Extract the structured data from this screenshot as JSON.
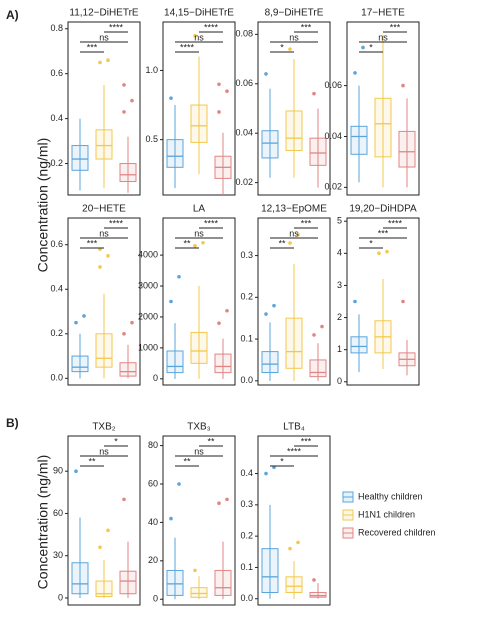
{
  "panel_labels": [
    "A)",
    "B)"
  ],
  "y_labels": [
    "Concentration (ng/ml)",
    "Concentration (ng/ml)"
  ],
  "legend": [
    {
      "name": "Healthy children",
      "color": "#5aa5dc"
    },
    {
      "name": "H1N1 children",
      "color": "#f2c94c"
    },
    {
      "name": "Recovered children",
      "color": "#e08585"
    }
  ],
  "chart_data": [
    {
      "type": "box",
      "title": "11,12−DiHETrE",
      "ylim": [
        0.06,
        0.83
      ],
      "yticks": [
        0.2,
        0.4,
        0.6,
        0.8
      ],
      "boxes": [
        {
          "whisker_low": 0.08,
          "q1": 0.17,
          "median": 0.22,
          "q3": 0.28,
          "whisker_high": 0.4,
          "outliers": []
        },
        {
          "whisker_low": 0.09,
          "q1": 0.22,
          "median": 0.28,
          "q3": 0.35,
          "whisker_high": 0.55,
          "outliers": [
            0.65,
            0.66
          ]
        },
        {
          "whisker_low": 0.07,
          "q1": 0.12,
          "median": 0.15,
          "q3": 0.2,
          "whisker_high": 0.32,
          "outliers": [
            0.43,
            0.48,
            0.55
          ]
        }
      ],
      "significance": [
        "***",
        "ns",
        "****"
      ]
    },
    {
      "type": "box",
      "title": "14,15−DiHETrE",
      "ylim": [
        0.1,
        1.35
      ],
      "yticks": [
        0.5,
        {
          "value": 1,
          "label": "1.0"
        }
      ],
      "boxes": [
        {
          "whisker_low": 0.15,
          "q1": 0.3,
          "median": 0.38,
          "q3": 0.5,
          "whisker_high": 0.75,
          "outliers": [
            0.8
          ]
        },
        {
          "whisker_low": 0.25,
          "q1": 0.48,
          "median": 0.6,
          "q3": 0.75,
          "whisker_high": 1.1,
          "outliers": [
            1.25
          ]
        },
        {
          "whisker_low": 0.1,
          "q1": 0.22,
          "median": 0.3,
          "q3": 0.38,
          "whisker_high": 0.55,
          "outliers": [
            0.7,
            0.85,
            0.9
          ]
        }
      ],
      "significance": [
        "****",
        "ns",
        "****"
      ]
    },
    {
      "type": "box",
      "title": "8,9−DiHETrE",
      "ylim": [
        0.015,
        0.085
      ],
      "yticks": [
        0.02,
        0.04,
        0.06,
        0.08
      ],
      "boxes": [
        {
          "whisker_low": 0.022,
          "q1": 0.03,
          "median": 0.036,
          "q3": 0.041,
          "whisker_high": 0.058,
          "outliers": [
            0.064
          ]
        },
        {
          "whisker_low": 0.022,
          "q1": 0.033,
          "median": 0.038,
          "q3": 0.049,
          "whisker_high": 0.07,
          "outliers": [
            0.074
          ]
        },
        {
          "whisker_low": 0.018,
          "q1": 0.027,
          "median": 0.032,
          "q3": 0.038,
          "whisker_high": 0.05,
          "outliers": [
            0.056
          ]
        }
      ],
      "significance": [
        "*",
        "ns",
        "***"
      ]
    },
    {
      "type": "box",
      "title": "17−HETE",
      "ylim": [
        0.017,
        0.085
      ],
      "yticks": [
        0.02,
        0.04,
        0.06
      ],
      "boxes": [
        {
          "whisker_low": 0.022,
          "q1": 0.033,
          "median": 0.04,
          "q3": 0.044,
          "whisker_high": 0.06,
          "outliers": [
            0.065,
            0.075
          ]
        },
        {
          "whisker_low": 0.02,
          "q1": 0.032,
          "median": 0.045,
          "q3": 0.055,
          "whisker_high": 0.08,
          "outliers": []
        },
        {
          "whisker_low": 0.02,
          "q1": 0.028,
          "median": 0.034,
          "q3": 0.042,
          "whisker_high": 0.055,
          "outliers": [
            0.06
          ]
        }
      ],
      "significance": [
        "*",
        "ns",
        "***"
      ]
    },
    {
      "type": "box",
      "title": "20−HETE",
      "ylim": [
        -0.03,
        0.72
      ],
      "yticks": [
        {
          "value": 0,
          "label": "0.0"
        },
        0.2,
        0.4,
        0.6
      ],
      "boxes": [
        {
          "whisker_low": 0,
          "q1": 0.03,
          "median": 0.05,
          "q3": 0.1,
          "whisker_high": 0.2,
          "outliers": [
            0.25,
            0.28
          ]
        },
        {
          "whisker_low": 0,
          "q1": 0.05,
          "median": 0.09,
          "q3": 0.2,
          "whisker_high": 0.38,
          "outliers": [
            0.5,
            0.55,
            0.58
          ]
        },
        {
          "whisker_low": 0,
          "q1": 0.01,
          "median": 0.03,
          "q3": 0.07,
          "whisker_high": 0.15,
          "outliers": [
            0.2,
            0.25
          ]
        }
      ],
      "significance": [
        "***",
        "ns",
        "****"
      ]
    },
    {
      "type": "box",
      "title": "LA",
      "ylim": [
        -200,
        5200
      ],
      "yticks": [
        0,
        1000,
        2000,
        3000,
        4000
      ],
      "boxes": [
        {
          "whisker_low": 0,
          "q1": 200,
          "median": 400,
          "q3": 900,
          "whisker_high": 1800,
          "outliers": [
            2500,
            3300
          ]
        },
        {
          "whisker_low": 0,
          "q1": 500,
          "median": 900,
          "q3": 1500,
          "whisker_high": 3000,
          "outliers": [
            4300,
            4400
          ]
        },
        {
          "whisker_low": 0,
          "q1": 200,
          "median": 400,
          "q3": 800,
          "whisker_high": 1300,
          "outliers": [
            1800,
            2200
          ]
        }
      ],
      "significance": [
        "**",
        "ns",
        "****"
      ]
    },
    {
      "type": "box",
      "title": "12,13−EpOME",
      "ylim": [
        -0.01,
        0.39
      ],
      "yticks": [
        {
          "value": 0,
          "label": "0.0"
        },
        0.1,
        0.2,
        0.3
      ],
      "boxes": [
        {
          "whisker_low": 0,
          "q1": 0.02,
          "median": 0.04,
          "q3": 0.07,
          "whisker_high": 0.14,
          "outliers": [
            0.16,
            0.18
          ]
        },
        {
          "whisker_low": 0,
          "q1": 0.03,
          "median": 0.07,
          "q3": 0.15,
          "whisker_high": 0.28,
          "outliers": [
            0.33,
            0.35
          ]
        },
        {
          "whisker_low": 0,
          "q1": 0.01,
          "median": 0.02,
          "q3": 0.05,
          "whisker_high": 0.09,
          "outliers": [
            0.11,
            0.13
          ]
        }
      ],
      "significance": [
        "**",
        "ns",
        "***"
      ]
    },
    {
      "type": "box",
      "title": "19,20−DiHDPA",
      "ylim": [
        -0.1,
        5.1
      ],
      "yticks": [
        0,
        1,
        2,
        3,
        4,
        5
      ],
      "boxes": [
        {
          "whisker_low": 0.3,
          "q1": 0.9,
          "median": 1.1,
          "q3": 1.4,
          "whisker_high": 2.1,
          "outliers": [
            2.5
          ]
        },
        {
          "whisker_low": 0.4,
          "q1": 0.9,
          "median": 1.4,
          "q3": 1.9,
          "whisker_high": 3.2,
          "outliers": [
            4,
            4.05
          ]
        },
        {
          "whisker_low": 0.2,
          "q1": 0.5,
          "median": 0.7,
          "q3": 0.9,
          "whisker_high": 1.3,
          "outliers": [
            2.5
          ]
        }
      ],
      "significance": [
        "*",
        "***",
        "****"
      ]
    },
    {
      "type": "box",
      "title": "TXB₂",
      "ylim": [
        -5,
        115
      ],
      "yticks": [
        0,
        30,
        60,
        90
      ],
      "boxes": [
        {
          "whisker_low": 0,
          "q1": 3,
          "median": 10,
          "q3": 25,
          "whisker_high": 57,
          "outliers": [
            90
          ]
        },
        {
          "whisker_low": 0,
          "q1": 1,
          "median": 3,
          "q3": 12,
          "whisker_high": 27,
          "outliers": [
            36,
            48
          ]
        },
        {
          "whisker_low": 0,
          "q1": 3,
          "median": 12,
          "q3": 19,
          "whisker_high": 40,
          "outliers": [
            70
          ]
        }
      ],
      "significance": [
        "**",
        "ns",
        "*"
      ]
    },
    {
      "type": "box",
      "title": "TXB₃",
      "ylim": [
        -3,
        85
      ],
      "yticks": [
        0,
        20,
        40,
        60,
        80
      ],
      "boxes": [
        {
          "whisker_low": 0,
          "q1": 2,
          "median": 8,
          "q3": 15,
          "whisker_high": 32,
          "outliers": [
            42,
            60
          ]
        },
        {
          "whisker_low": 0,
          "q1": 1,
          "median": 3,
          "q3": 6,
          "whisker_high": 12,
          "outliers": [
            15
          ]
        },
        {
          "whisker_low": 0,
          "q1": 2,
          "median": 6,
          "q3": 15,
          "whisker_high": 30,
          "outliers": [
            50,
            52
          ]
        }
      ],
      "significance": [
        "**",
        "ns",
        "**"
      ]
    },
    {
      "type": "box",
      "title": "LTB₄",
      "ylim": [
        -0.02,
        0.52
      ],
      "yticks": [
        {
          "value": 0,
          "label": "0.0"
        },
        0.1,
        0.2,
        0.3,
        0.4
      ],
      "boxes": [
        {
          "whisker_low": 0,
          "q1": 0.02,
          "median": 0.07,
          "q3": 0.16,
          "whisker_high": 0.3,
          "outliers": [
            0.4,
            0.42
          ]
        },
        {
          "whisker_low": 0,
          "q1": 0.02,
          "median": 0.04,
          "q3": 0.07,
          "whisker_high": 0.12,
          "outliers": [
            0.16,
            0.18
          ]
        },
        {
          "whisker_low": 0,
          "q1": 0.005,
          "median": 0.01,
          "q3": 0.02,
          "whisker_high": 0.05,
          "outliers": [
            0.06
          ]
        }
      ],
      "significance": [
        "*",
        "****",
        "***"
      ]
    }
  ]
}
